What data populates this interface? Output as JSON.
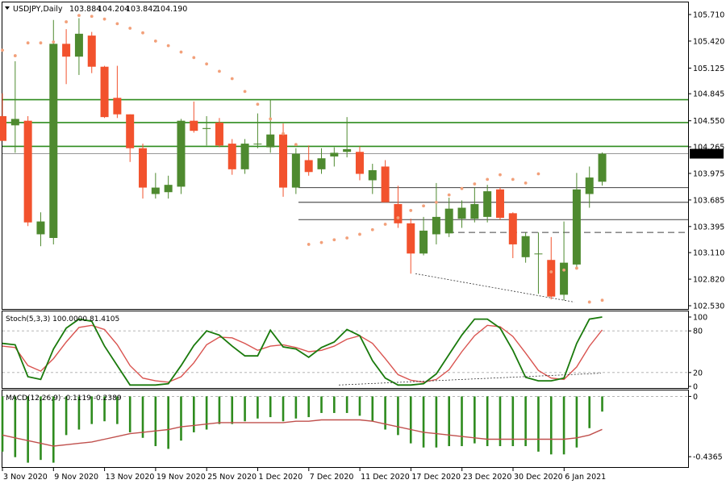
{
  "header": {
    "symbol": "USDJPY,Daily",
    "open": "103.884",
    "high": "104.204",
    "low": "103.842",
    "close": "104.190"
  },
  "stoch_label": "Stoch(5,3,3) 100.0000 81.4105",
  "macd_label": "MACD(12,26,9) -0.1119 -0.2389",
  "colors": {
    "bull": "#4e8a2f",
    "bear": "#f2522d",
    "sar": "#f2a07a",
    "hline_green": "#2e8b1e",
    "hline_gray": "#555555",
    "stoch_main": "#1a7a0c",
    "stoch_signal": "#d9534f",
    "macd_hist": "#2e8b1e",
    "macd_signal": "#c0504d"
  },
  "chart_data": {
    "type": "candlestick",
    "price_axis": {
      "ticks": [
        "105.710",
        "105.420",
        "105.125",
        "104.845",
        "104.550",
        "104.265",
        "103.975",
        "103.685",
        "103.395",
        "103.110",
        "102.820",
        "102.530"
      ],
      "range": [
        102.5,
        105.79
      ],
      "current_price_label": "104.190"
    },
    "date_labels": [
      "3 Nov 2020",
      "9 Nov 2020",
      "13 Nov 2020",
      "19 Nov 2020",
      "25 Nov 2020",
      "1 Dec 2020",
      "7 Dec 2020",
      "11 Dec 2020",
      "17 Dec 2020",
      "23 Dec 2020",
      "30 Dec 2020",
      "6 Jan 2021"
    ],
    "candles": [
      {
        "o": 104.6,
        "h": 104.85,
        "l": 104.35,
        "c": 104.33
      },
      {
        "o": 104.5,
        "h": 105.2,
        "l": 104.2,
        "c": 104.57
      },
      {
        "o": 104.55,
        "h": 104.6,
        "l": 103.4,
        "c": 103.44
      },
      {
        "o": 103.31,
        "h": 103.55,
        "l": 103.18,
        "c": 103.45
      },
      {
        "o": 103.27,
        "h": 105.65,
        "l": 103.2,
        "c": 105.39
      },
      {
        "o": 105.39,
        "h": 105.55,
        "l": 104.95,
        "c": 105.25
      },
      {
        "o": 105.25,
        "h": 105.67,
        "l": 105.05,
        "c": 105.5
      },
      {
        "o": 105.48,
        "h": 105.52,
        "l": 105.07,
        "c": 105.14
      },
      {
        "o": 105.14,
        "h": 105.15,
        "l": 104.58,
        "c": 104.59
      },
      {
        "o": 104.8,
        "h": 105.15,
        "l": 104.58,
        "c": 104.62
      },
      {
        "o": 104.62,
        "h": 104.62,
        "l": 104.1,
        "c": 104.25
      },
      {
        "o": 104.25,
        "h": 104.3,
        "l": 103.7,
        "c": 103.82
      },
      {
        "o": 103.75,
        "h": 103.98,
        "l": 103.7,
        "c": 103.82
      },
      {
        "o": 103.77,
        "h": 103.95,
        "l": 103.7,
        "c": 103.85
      },
      {
        "o": 103.83,
        "h": 104.57,
        "l": 103.75,
        "c": 104.55
      },
      {
        "o": 104.55,
        "h": 104.76,
        "l": 104.42,
        "c": 104.44
      },
      {
        "o": 104.46,
        "h": 104.6,
        "l": 104.28,
        "c": 104.47
      },
      {
        "o": 104.53,
        "h": 104.58,
        "l": 104.26,
        "c": 104.28
      },
      {
        "o": 104.3,
        "h": 104.35,
        "l": 103.96,
        "c": 104.02
      },
      {
        "o": 104.02,
        "h": 104.35,
        "l": 103.97,
        "c": 104.3
      },
      {
        "o": 104.3,
        "h": 104.63,
        "l": 104.25,
        "c": 104.3
      },
      {
        "o": 104.26,
        "h": 104.78,
        "l": 104.2,
        "c": 104.4
      },
      {
        "o": 104.4,
        "h": 104.52,
        "l": 103.72,
        "c": 103.82
      },
      {
        "o": 103.82,
        "h": 104.25,
        "l": 103.75,
        "c": 104.19
      },
      {
        "o": 104.12,
        "h": 104.28,
        "l": 103.95,
        "c": 103.99
      },
      {
        "o": 104.02,
        "h": 104.25,
        "l": 103.97,
        "c": 104.14
      },
      {
        "o": 104.16,
        "h": 104.26,
        "l": 104.05,
        "c": 104.2
      },
      {
        "o": 104.21,
        "h": 104.59,
        "l": 104.15,
        "c": 104.24
      },
      {
        "o": 104.21,
        "h": 104.27,
        "l": 103.9,
        "c": 103.97
      },
      {
        "o": 103.9,
        "h": 104.08,
        "l": 103.75,
        "c": 104.01
      },
      {
        "o": 104.05,
        "h": 104.12,
        "l": 103.66,
        "c": 103.66
      },
      {
        "o": 103.64,
        "h": 103.84,
        "l": 103.38,
        "c": 103.43
      },
      {
        "o": 103.43,
        "h": 103.48,
        "l": 102.88,
        "c": 103.1
      },
      {
        "o": 103.1,
        "h": 103.5,
        "l": 103.08,
        "c": 103.35
      },
      {
        "o": 103.31,
        "h": 103.87,
        "l": 103.2,
        "c": 103.5
      },
      {
        "o": 103.32,
        "h": 103.71,
        "l": 103.28,
        "c": 103.59
      },
      {
        "o": 103.48,
        "h": 103.68,
        "l": 103.38,
        "c": 103.6
      },
      {
        "o": 103.48,
        "h": 103.82,
        "l": 103.44,
        "c": 103.64
      },
      {
        "o": 103.5,
        "h": 103.85,
        "l": 103.44,
        "c": 103.78
      },
      {
        "o": 103.8,
        "h": 103.82,
        "l": 103.47,
        "c": 103.49
      },
      {
        "o": 103.54,
        "h": 103.55,
        "l": 103.05,
        "c": 103.2
      },
      {
        "o": 103.06,
        "h": 103.33,
        "l": 103.0,
        "c": 103.29
      },
      {
        "o": 103.1,
        "h": 103.33,
        "l": 102.66,
        "c": 103.1
      },
      {
        "o": 103.03,
        "h": 103.28,
        "l": 102.6,
        "c": 102.63
      },
      {
        "o": 102.65,
        "h": 103.45,
        "l": 102.59,
        "c": 103.0
      },
      {
        "o": 102.98,
        "h": 103.98,
        "l": 102.95,
        "c": 103.8
      },
      {
        "o": 103.75,
        "h": 104.05,
        "l": 103.6,
        "c": 103.93
      },
      {
        "o": 103.884,
        "h": 104.204,
        "l": 103.842,
        "c": 104.19
      }
    ],
    "parabolic_sar": [
      105.32,
      105.26,
      105.4,
      105.4,
      105.41,
      105.63,
      105.7,
      105.69,
      105.66,
      105.61,
      105.56,
      105.51,
      105.42,
      105.37,
      105.3,
      105.24,
      105.17,
      105.09,
      105.01,
      104.87,
      104.73,
      104.57,
      104.41,
      104.29,
      103.2,
      103.22,
      103.25,
      103.27,
      103.31,
      103.36,
      103.42,
      103.49,
      103.57,
      103.62,
      103.66,
      103.74,
      103.81,
      103.86,
      103.91,
      103.96,
      103.91,
      103.87,
      103.97,
      102.9,
      102.92,
      102.94,
      102.57,
      102.59
    ],
    "horizontal_levels": {
      "green": [
        104.78,
        104.53,
        104.27
      ],
      "gray": [
        103.82,
        103.66,
        103.47
      ],
      "dashed": [
        103.33
      ]
    },
    "stochastic": {
      "levels": [
        80,
        20
      ],
      "axis_labels": [
        "100",
        "80",
        "20",
        "0"
      ],
      "main": [
        62,
        60,
        14,
        10,
        54,
        84,
        97,
        94,
        58,
        30,
        2,
        2,
        2,
        4,
        30,
        59,
        80,
        74,
        58,
        44,
        44,
        81,
        57,
        54,
        42,
        56,
        64,
        82,
        73,
        37,
        12,
        2,
        2,
        4,
        18,
        46,
        74,
        97,
        97,
        84,
        52,
        13,
        8,
        8,
        12,
        62,
        97,
        100
      ],
      "signal": [
        58,
        56,
        30,
        22,
        40,
        64,
        85,
        88,
        82,
        60,
        30,
        12,
        8,
        6,
        14,
        34,
        60,
        71,
        70,
        62,
        52,
        58,
        60,
        56,
        50,
        52,
        58,
        68,
        73,
        62,
        40,
        17,
        9,
        6,
        10,
        24,
        50,
        73,
        88,
        86,
        72,
        48,
        23,
        12,
        10,
        28,
        58,
        81.4105
      ]
    },
    "macd": {
      "axis_labels": [
        "0",
        "-0.4365"
      ],
      "histogram": [
        -0.4,
        -0.44,
        -0.48,
        -0.46,
        -0.48,
        -0.28,
        -0.24,
        -0.2,
        -0.18,
        -0.2,
        -0.26,
        -0.3,
        -0.36,
        -0.38,
        -0.32,
        -0.26,
        -0.24,
        -0.2,
        -0.2,
        -0.18,
        -0.16,
        -0.15,
        -0.18,
        -0.16,
        -0.15,
        -0.12,
        -0.12,
        -0.12,
        -0.14,
        -0.18,
        -0.24,
        -0.28,
        -0.34,
        -0.37,
        -0.37,
        -0.36,
        -0.36,
        -0.34,
        -0.36,
        -0.36,
        -0.36,
        -0.36,
        -0.4,
        -0.42,
        -0.42,
        -0.37,
        -0.23,
        -0.11
      ],
      "signal": [
        -0.28,
        -0.3,
        -0.32,
        -0.34,
        -0.36,
        -0.35,
        -0.34,
        -0.33,
        -0.31,
        -0.29,
        -0.27,
        -0.26,
        -0.25,
        -0.24,
        -0.22,
        -0.21,
        -0.2,
        -0.19,
        -0.19,
        -0.19,
        -0.19,
        -0.19,
        -0.19,
        -0.18,
        -0.18,
        -0.17,
        -0.17,
        -0.17,
        -0.17,
        -0.18,
        -0.2,
        -0.22,
        -0.24,
        -0.26,
        -0.27,
        -0.28,
        -0.29,
        -0.3,
        -0.31,
        -0.31,
        -0.31,
        -0.31,
        -0.31,
        -0.31,
        -0.31,
        -0.3,
        -0.28,
        -0.2389
      ]
    }
  }
}
